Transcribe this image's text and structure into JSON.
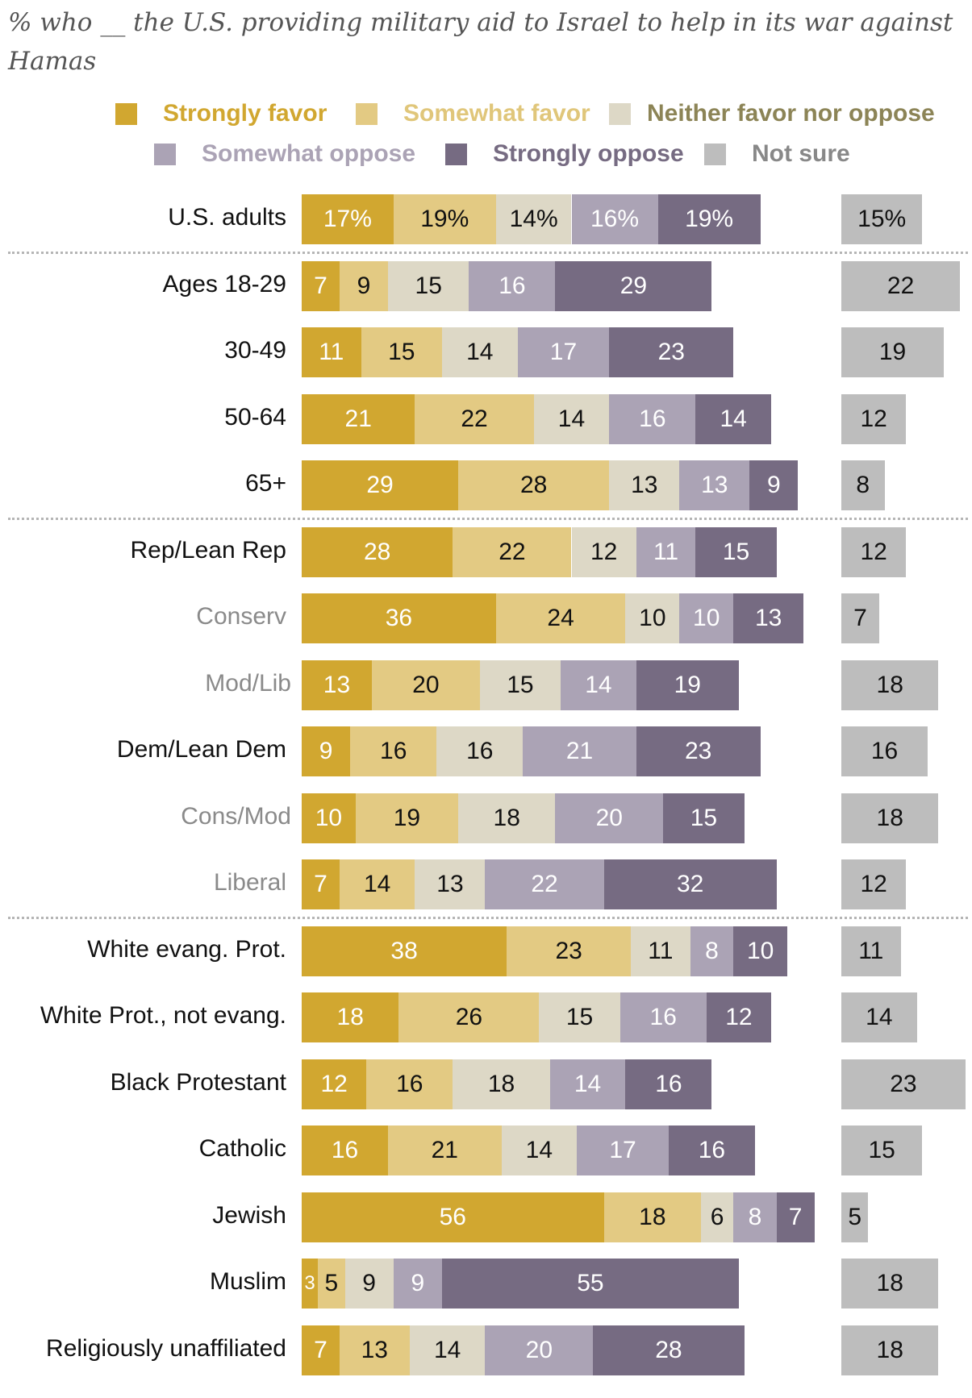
{
  "chart_data": {
    "type": "bar",
    "orientation": "horizontal-stacked",
    "title": "% who __ the U.S. providing military aid to Israel to help in its war against Hamas",
    "legend": [
      {
        "name": "Strongly favor",
        "color": "#D1A730",
        "text_color": "#FFFFFF",
        "legend_text_color": "#D1A730"
      },
      {
        "name": "Somewhat favor",
        "color": "#E3CA83",
        "text_color": "#111111",
        "legend_text_color": "#E0C67A"
      },
      {
        "name": "Neither favor nor oppose",
        "color": "#DDD8C6",
        "text_color": "#111111",
        "legend_text_color": "#8C8456"
      },
      {
        "name": "Somewhat oppose",
        "color": "#ABA3B5",
        "text_color": "#FFFFFF",
        "legend_text_color": "#ABA3B5"
      },
      {
        "name": "Strongly oppose",
        "color": "#766B82",
        "text_color": "#FFFFFF",
        "legend_text_color": "#766B82"
      },
      {
        "name": "Not sure",
        "color": "#BDBDBD",
        "text_color": "#111111",
        "legend_text_color": "#888888"
      }
    ],
    "rows": [
      {
        "label": "U.S. adults",
        "sub": false,
        "values": [
          17,
          19,
          14,
          16,
          19,
          15
        ],
        "display": [
          "17%",
          "19%",
          "14%",
          "16%",
          "19%",
          "15%"
        ],
        "sep_after": true
      },
      {
        "label": "Ages 18-29",
        "sub": false,
        "values": [
          7,
          9,
          15,
          16,
          29,
          22
        ]
      },
      {
        "label": "30-49",
        "sub": false,
        "values": [
          11,
          15,
          14,
          17,
          23,
          19
        ]
      },
      {
        "label": "50-64",
        "sub": false,
        "values": [
          21,
          22,
          14,
          16,
          14,
          12
        ]
      },
      {
        "label": "65+",
        "sub": false,
        "values": [
          29,
          28,
          13,
          13,
          9,
          8
        ],
        "sep_after": true
      },
      {
        "label": "Rep/Lean Rep",
        "sub": false,
        "values": [
          28,
          22,
          12,
          11,
          15,
          12
        ]
      },
      {
        "label": "Conserv",
        "sub": true,
        "values": [
          36,
          24,
          10,
          10,
          13,
          7
        ]
      },
      {
        "label": "Mod/Lib",
        "sub": true,
        "values": [
          13,
          20,
          15,
          14,
          19,
          18
        ]
      },
      {
        "label": "Dem/Lean Dem",
        "sub": false,
        "values": [
          9,
          16,
          16,
          21,
          23,
          16
        ]
      },
      {
        "label": "Cons/Mod",
        "sub": true,
        "values": [
          10,
          19,
          18,
          20,
          15,
          18
        ]
      },
      {
        "label": "Liberal",
        "sub": true,
        "values": [
          7,
          14,
          13,
          22,
          32,
          12
        ],
        "sep_after": true
      },
      {
        "label": "White evang. Prot.",
        "sub": false,
        "values": [
          38,
          23,
          11,
          8,
          10,
          11
        ]
      },
      {
        "label": "White Prot., not evang.",
        "sub": false,
        "values": [
          18,
          26,
          15,
          16,
          12,
          14
        ]
      },
      {
        "label": "Black Protestant",
        "sub": false,
        "values": [
          12,
          16,
          18,
          14,
          16,
          23
        ]
      },
      {
        "label": "Catholic",
        "sub": false,
        "values": [
          16,
          21,
          14,
          17,
          16,
          15
        ]
      },
      {
        "label": "Jewish",
        "sub": false,
        "values": [
          56,
          18,
          6,
          8,
          7,
          5
        ]
      },
      {
        "label": "Muslim",
        "sub": false,
        "values": [
          3,
          5,
          9,
          9,
          55,
          18
        ]
      },
      {
        "label": "Religiously unaffiliated",
        "sub": false,
        "values": [
          7,
          13,
          14,
          20,
          28,
          18
        ]
      }
    ],
    "xlim": [
      0,
      100
    ],
    "grid": false,
    "legend_placement": "top"
  }
}
